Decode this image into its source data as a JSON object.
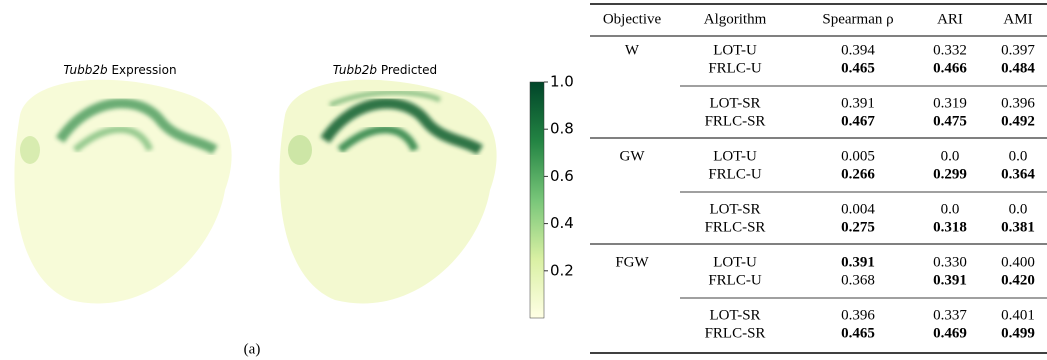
{
  "panels": [
    {
      "gene": "Tubb2b",
      "label": "Expression"
    },
    {
      "gene": "Tubb2b",
      "label": "Predicted"
    }
  ],
  "colorbar": {
    "clim": [
      0,
      1
    ],
    "ticks": [
      0.2,
      0.4,
      0.6,
      0.8,
      {
        "value": 1,
        "label": "1.0"
      }
    ],
    "colors": [
      "#ffffe5",
      "#d9f0a3",
      "#78c679",
      "#238443",
      "#004529"
    ]
  },
  "caption": "(a)",
  "table": {
    "header": [
      "Objective",
      "Algorithm",
      "Spearman ρ",
      "ARI",
      "AMI"
    ],
    "groups": [
      {
        "objective": "W",
        "blocks": [
          [
            {
              "algorithm": "LOT-U",
              "values": [
                "0.394",
                "0.332",
                "0.397"
              ],
              "bold": [
                false,
                false,
                false
              ]
            },
            {
              "algorithm": "FRLC-U",
              "values": [
                "0.465",
                "0.466",
                "0.484"
              ],
              "bold": [
                true,
                true,
                true
              ]
            }
          ],
          [
            {
              "algorithm": "LOT-SR",
              "values": [
                "0.391",
                "0.319",
                "0.396"
              ],
              "bold": [
                false,
                false,
                false
              ]
            },
            {
              "algorithm": "FRLC-SR",
              "values": [
                "0.467",
                "0.475",
                "0.492"
              ],
              "bold": [
                true,
                true,
                true
              ]
            }
          ]
        ]
      },
      {
        "objective": "GW",
        "blocks": [
          [
            {
              "algorithm": "LOT-U",
              "values": [
                "0.005",
                "0.0",
                "0.0"
              ],
              "bold": [
                false,
                false,
                false
              ]
            },
            {
              "algorithm": "FRLC-U",
              "values": [
                "0.266",
                "0.299",
                "0.364"
              ],
              "bold": [
                true,
                true,
                true
              ]
            }
          ],
          [
            {
              "algorithm": "LOT-SR",
              "values": [
                "0.004",
                "0.0",
                "0.0"
              ],
              "bold": [
                false,
                false,
                false
              ]
            },
            {
              "algorithm": "FRLC-SR",
              "values": [
                "0.275",
                "0.318",
                "0.381"
              ],
              "bold": [
                true,
                true,
                true
              ]
            }
          ]
        ]
      },
      {
        "objective": "FGW",
        "blocks": [
          [
            {
              "algorithm": "LOT-U",
              "values": [
                "0.391",
                "0.330",
                "0.400"
              ],
              "bold": [
                true,
                false,
                false
              ]
            },
            {
              "algorithm": "FRLC-U",
              "values": [
                "0.368",
                "0.391",
                "0.420"
              ],
              "bold": [
                false,
                true,
                true
              ]
            }
          ],
          [
            {
              "algorithm": "LOT-SR",
              "values": [
                "0.396",
                "0.337",
                "0.401"
              ],
              "bold": [
                false,
                false,
                false
              ]
            },
            {
              "algorithm": "FRLC-SR",
              "values": [
                "0.465",
                "0.469",
                "0.499"
              ],
              "bold": [
                true,
                true,
                true
              ]
            }
          ]
        ]
      }
    ]
  }
}
